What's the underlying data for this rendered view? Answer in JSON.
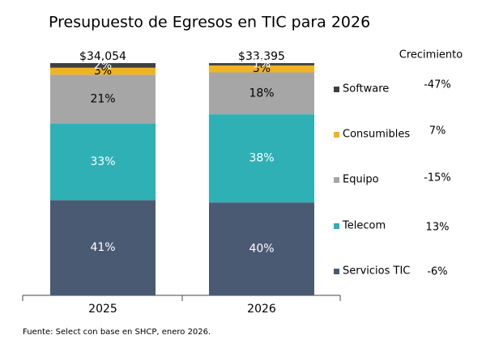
{
  "chart_data": {
    "type": "stacked_bar_100",
    "title": "Presupuesto de Egresos en TIC para 2026",
    "categories": [
      "2025",
      "2026"
    ],
    "totals": {
      "values": [
        34054,
        33395
      ],
      "value_labels": [
        "$34,054",
        "$33,395"
      ]
    },
    "series": [
      {
        "name": "Servicios TIC",
        "color": "#4a5a73",
        "values": [
          41,
          40
        ],
        "value_labels": [
          "41%",
          "40%"
        ]
      },
      {
        "name": "Telecom",
        "color": "#2fb0b5",
        "values": [
          33,
          38
        ],
        "value_labels": [
          "33%",
          "38%"
        ]
      },
      {
        "name": "Equipo",
        "color": "#a6a6a6",
        "values": [
          21,
          18
        ],
        "value_labels": [
          "21%",
          "18%"
        ]
      },
      {
        "name": "Consumibles",
        "color": "#f0b323",
        "values": [
          3,
          3
        ],
        "value_labels": [
          "3%",
          "3%"
        ]
      },
      {
        "name": "Software",
        "color": "#404040",
        "values": [
          2,
          1
        ],
        "value_labels": [
          "2%",
          "1%"
        ]
      }
    ],
    "growth": {
      "title": "Crecimiento",
      "values": [
        -6,
        13,
        -15,
        7,
        -47
      ],
      "value_labels": [
        "-6%",
        "13%",
        "-15%",
        "7%",
        "-47%"
      ]
    },
    "ylim": [
      0,
      100
    ],
    "source": "Fuente: Select con base en SHCP, enero 2026."
  }
}
